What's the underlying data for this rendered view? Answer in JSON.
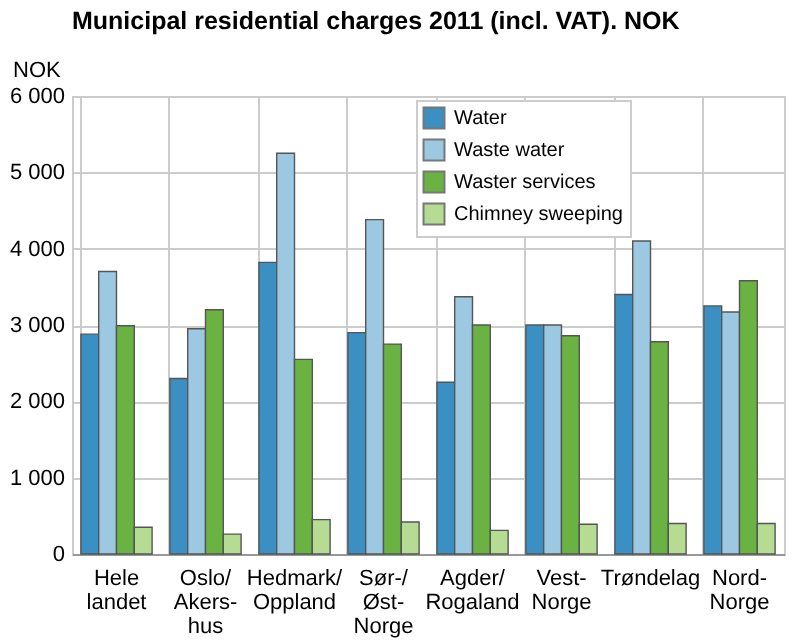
{
  "chart_data": {
    "type": "bar",
    "title": "Municipal residential charges 2011 (incl. VAT). NOK",
    "ylabel": "NOK",
    "categories": [
      "Hele\nlandet",
      "Oslo/\nAkers-\nhus",
      "Hedmark/\nOppland",
      "Sør-/\nØst-\nNorge",
      "Agder/\nRogaland",
      "Vest-\nNorge",
      "Trøndelag",
      "Nord-\nNorge"
    ],
    "series": [
      {
        "name": "Water",
        "color": "#3a8fc3",
        "values": [
          2880,
          2300,
          3820,
          2900,
          2250,
          3000,
          3400,
          3250
        ]
      },
      {
        "name": "Waste water",
        "color": "#9cc8e2",
        "values": [
          3700,
          2950,
          5250,
          4380,
          3370,
          3000,
          4100,
          3170
        ]
      },
      {
        "name": "Waster services",
        "color": "#6ab343",
        "values": [
          2990,
          3200,
          2550,
          2750,
          3000,
          2860,
          2780,
          3580
        ]
      },
      {
        "name": "Chimney sweeping",
        "color": "#b6dc94",
        "values": [
          350,
          260,
          450,
          420,
          310,
          390,
          400,
          400
        ]
      }
    ],
    "ylim": [
      0,
      6000
    ],
    "yticks": [
      {
        "value": 0,
        "label": "0"
      },
      {
        "value": 1000,
        "label": "1 000"
      },
      {
        "value": 2000,
        "label": "2 000"
      },
      {
        "value": 3000,
        "label": "3 000"
      },
      {
        "value": 4000,
        "label": "4 000"
      },
      {
        "value": 5000,
        "label": "5 000"
      },
      {
        "value": 6000,
        "label": "6 000"
      }
    ],
    "grid": true,
    "legend": "top right"
  }
}
